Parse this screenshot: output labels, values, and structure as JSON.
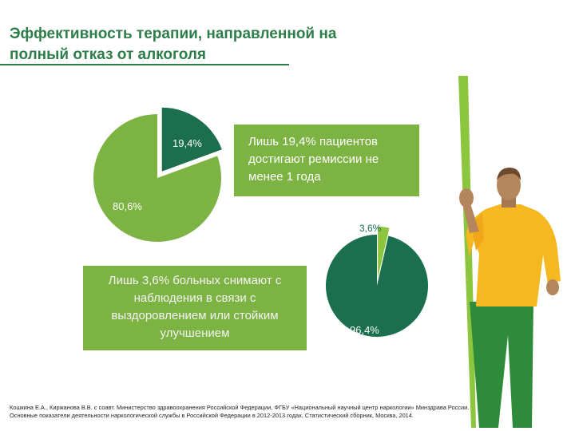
{
  "slide": {
    "title_line1": "Эффективность терапии, направленной на",
    "title_line2": "полный отказ от алкоголя",
    "callout_1": "Лишь 19,4% пациентов достигают ремиссии не менее 1 года",
    "callout_2": "Лишь 3,6% больных снимают с наблюдения в связи с выздоровлением или стойким улучшением",
    "citation": "Кошкина Е.А., Киржанова В.В. с соавт. Министерство здравоохранения Российской Федерации, ФГБУ «Национальный научный центр наркологии» Минздрава России. Основные показатели деятельности наркологической службы в Российской Федерации в 2012-2013 годах. Статистический сборник, Москва, 2014."
  },
  "colors": {
    "title": "#2e7d4a",
    "light_green": "#7cb342",
    "dark_green": "#1b6e4e",
    "stick": "#8cc63f",
    "shirt": "#f5b820",
    "pants": "#2e8b3a",
    "skin": "#b5865e"
  },
  "chart_data": [
    {
      "type": "pie",
      "slices": [
        {
          "label": "19,4%",
          "value": 19.4,
          "color": "#1b6e4e",
          "exploded": true
        },
        {
          "label": "80,6%",
          "value": 80.6,
          "color": "#7cb342"
        }
      ]
    },
    {
      "type": "pie",
      "slices": [
        {
          "label": "3,6%",
          "value": 3.6,
          "color": "#8cc63f",
          "exploded": true
        },
        {
          "label": "96,4%",
          "value": 96.4,
          "color": "#1b6e4e"
        }
      ]
    }
  ]
}
